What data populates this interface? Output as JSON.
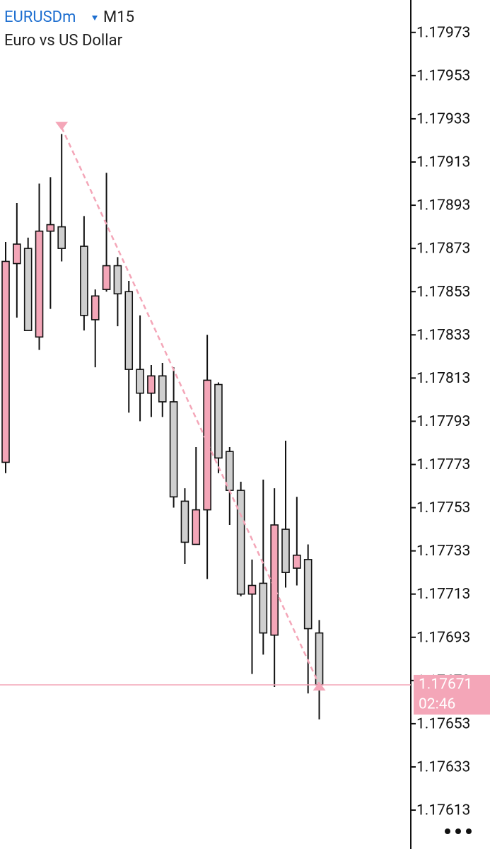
{
  "chart_data": {
    "type": "candlestick",
    "symbol": "EURUSDm",
    "timeframe": "M15",
    "description": "Euro vs US Dollar",
    "ylim": [
      1.17595,
      1.17988
    ],
    "yticks": [
      1.17973,
      1.17953,
      1.17933,
      1.17913,
      1.17893,
      1.17873,
      1.17853,
      1.17833,
      1.17813,
      1.17793,
      1.17773,
      1.17753,
      1.17733,
      1.17713,
      1.17693,
      1.17673,
      1.17653,
      1.17633,
      1.17613
    ],
    "bull_color": "#f4a6b8",
    "bear_color": "#cfcfcf",
    "candles": [
      {
        "open": 1.17774,
        "high": 1.17876,
        "low": 1.17769,
        "close": 1.17867
      },
      {
        "open": 1.17866,
        "high": 1.17894,
        "low": 1.17841,
        "close": 1.17875
      },
      {
        "open": 1.17873,
        "high": 1.17878,
        "low": 1.17835,
        "close": 1.17835
      },
      {
        "open": 1.17832,
        "high": 1.17903,
        "low": 1.17826,
        "close": 1.17881
      },
      {
        "open": 1.17881,
        "high": 1.17906,
        "low": 1.17845,
        "close": 1.17884
      },
      {
        "open": 1.17883,
        "high": 1.17926,
        "low": 1.17867,
        "close": 1.17873
      },
      null,
      {
        "open": 1.17874,
        "high": 1.17888,
        "low": 1.17835,
        "close": 1.17842
      },
      {
        "open": 1.1784,
        "high": 1.17854,
        "low": 1.17818,
        "close": 1.17851
      },
      {
        "open": 1.17854,
        "high": 1.17908,
        "low": 1.17853,
        "close": 1.17865
      },
      {
        "open": 1.17865,
        "high": 1.17869,
        "low": 1.17837,
        "close": 1.17852
      },
      {
        "open": 1.17853,
        "high": 1.17858,
        "low": 1.17797,
        "close": 1.17817
      },
      {
        "open": 1.17817,
        "high": 1.17842,
        "low": 1.17793,
        "close": 1.17806
      },
      {
        "open": 1.17806,
        "high": 1.17819,
        "low": 1.17795,
        "close": 1.17814
      },
      {
        "open": 1.17814,
        "high": 1.1782,
        "low": 1.17795,
        "close": 1.17802
      },
      {
        "open": 1.17802,
        "high": 1.17818,
        "low": 1.17753,
        "close": 1.17758
      },
      {
        "open": 1.17756,
        "high": 1.17762,
        "low": 1.17727,
        "close": 1.17737
      },
      {
        "open": 1.17736,
        "high": 1.17781,
        "low": 1.17736,
        "close": 1.17752
      },
      {
        "open": 1.17752,
        "high": 1.17833,
        "low": 1.1772,
        "close": 1.17812
      },
      {
        "open": 1.1781,
        "high": 1.17811,
        "low": 1.17769,
        "close": 1.17776
      },
      {
        "open": 1.17779,
        "high": 1.17781,
        "low": 1.17745,
        "close": 1.17761
      },
      {
        "open": 1.17761,
        "high": 1.17765,
        "low": 1.17712,
        "close": 1.17713
      },
      {
        "open": 1.17713,
        "high": 1.17729,
        "low": 1.17676,
        "close": 1.17717
      },
      {
        "open": 1.17718,
        "high": 1.17766,
        "low": 1.17685,
        "close": 1.17695
      },
      {
        "open": 1.17694,
        "high": 1.17762,
        "low": 1.1767,
        "close": 1.17745
      },
      {
        "open": 1.17743,
        "high": 1.17784,
        "low": 1.17716,
        "close": 1.17723
      },
      {
        "open": 1.17725,
        "high": 1.17758,
        "low": 1.17717,
        "close": 1.17731
      },
      {
        "open": 1.17729,
        "high": 1.17736,
        "low": 1.17667,
        "close": 1.17697
      },
      {
        "open": 1.17695,
        "high": 1.17701,
        "low": 1.17655,
        "close": 1.17671
      }
    ],
    "trendline": {
      "values": [
        1.17929,
        1.17671
      ],
      "color": "#f4a6b8"
    },
    "current_price": {
      "value": 1.17671,
      "countdown": "02:46",
      "color": "#f4a6b8"
    }
  }
}
